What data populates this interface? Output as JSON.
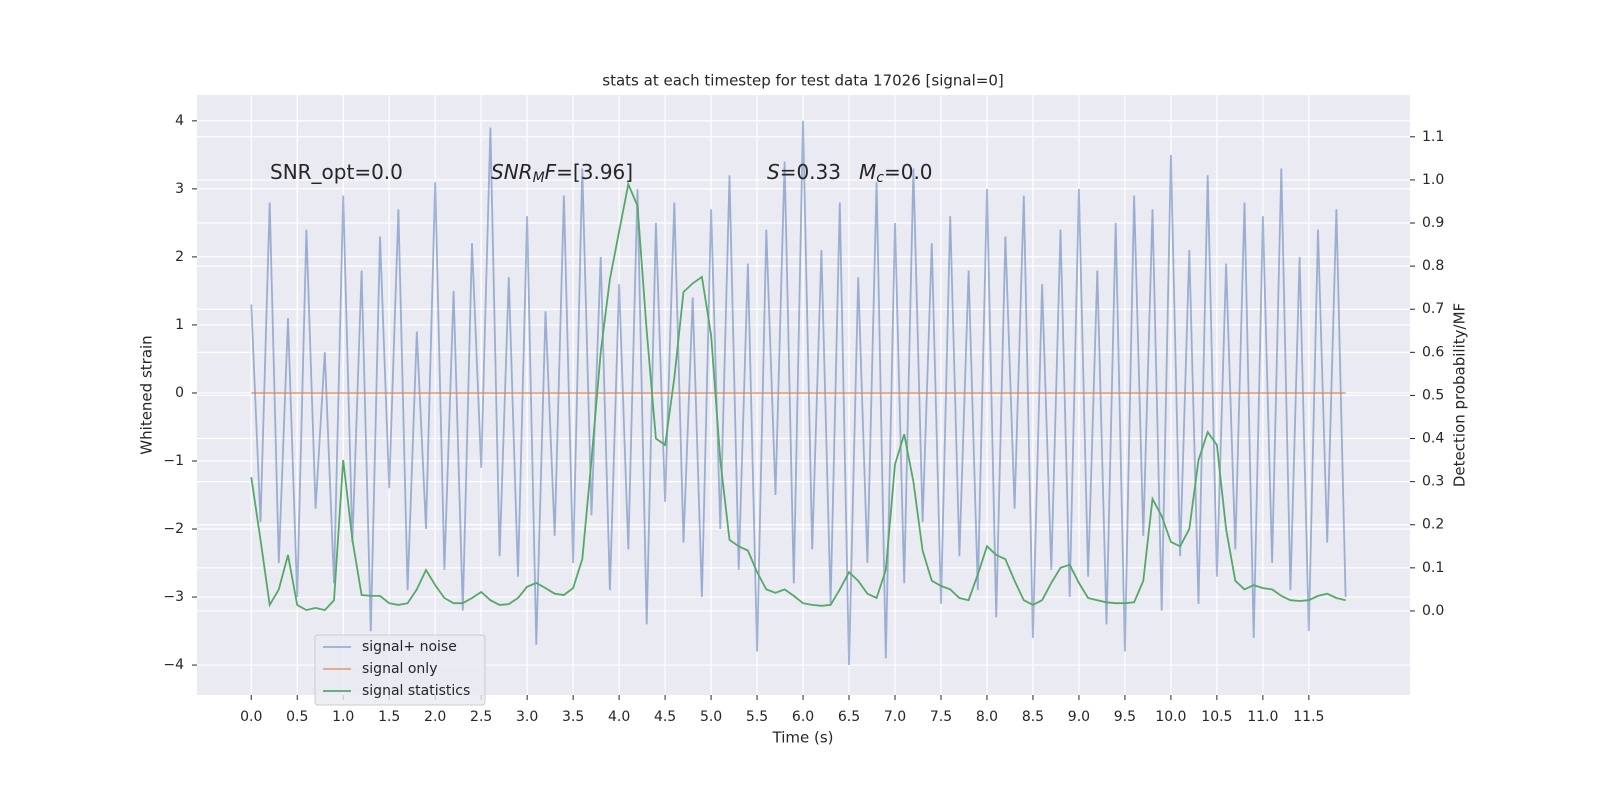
{
  "chart_data": {
    "type": "line",
    "title": "stats at each timestep for test data 17026 [signal=0]",
    "xlabel": "Time (s)",
    "ylabel": "Whitened strain",
    "y2label": "Detection probability/MF",
    "annotations": [
      [
        {
          "text": "SNR_opt=0.0"
        }
      ],
      [
        {
          "text": "SNR",
          "italic": true
        },
        {
          "text": "M",
          "italic": true,
          "sub": true
        },
        {
          "text": "F",
          "italic": true
        },
        {
          "text": "=[3.96]"
        }
      ],
      [
        {
          "text": "S",
          "italic": true
        },
        {
          "text": "=0.33"
        }
      ],
      [
        {
          "text": "M",
          "italic": true
        },
        {
          "text": "c",
          "italic": true,
          "sub": true
        },
        {
          "text": "=0.0"
        }
      ]
    ],
    "x": [
      0.0,
      0.1,
      0.2,
      0.3,
      0.4,
      0.5,
      0.6,
      0.7,
      0.8,
      0.9,
      1.0,
      1.1,
      1.2,
      1.3,
      1.4,
      1.5,
      1.6,
      1.7,
      1.8,
      1.9,
      2.0,
      2.1,
      2.2,
      2.3,
      2.4,
      2.5,
      2.6,
      2.7,
      2.8,
      2.9,
      3.0,
      3.1,
      3.2,
      3.3,
      3.4,
      3.5,
      3.6,
      3.7,
      3.8,
      3.9,
      4.0,
      4.1,
      4.2,
      4.3,
      4.4,
      4.5,
      4.6,
      4.7,
      4.8,
      4.9,
      5.0,
      5.1,
      5.2,
      5.3,
      5.4,
      5.5,
      5.6,
      5.7,
      5.8,
      5.9,
      6.0,
      6.1,
      6.2,
      6.3,
      6.4,
      6.5,
      6.6,
      6.7,
      6.8,
      6.9,
      7.0,
      7.1,
      7.2,
      7.3,
      7.4,
      7.5,
      7.6,
      7.7,
      7.8,
      7.9,
      8.0,
      8.1,
      8.2,
      8.3,
      8.4,
      8.5,
      8.6,
      8.7,
      8.8,
      8.9,
      9.0,
      9.1,
      9.2,
      9.3,
      9.4,
      9.5,
      9.6,
      9.7,
      9.8,
      9.9,
      10.0,
      10.1,
      10.2,
      10.3,
      10.4,
      10.5,
      10.6,
      10.7,
      10.8,
      10.9,
      11.0,
      11.1,
      11.2,
      11.3,
      11.4,
      11.5,
      11.6,
      11.7,
      11.8,
      11.9
    ],
    "series": [
      {
        "name": "signal+ noise",
        "color": "#4c72b0",
        "opacity": 0.5,
        "values": [
          1.3,
          -1.9,
          2.8,
          -2.5,
          1.1,
          -3.0,
          2.4,
          -1.7,
          0.6,
          -2.8,
          2.9,
          -2.2,
          1.8,
          -3.5,
          2.3,
          -1.4,
          2.7,
          -2.9,
          0.9,
          -2.0,
          3.1,
          -2.6,
          1.5,
          -3.2,
          2.2,
          -1.1,
          3.9,
          -2.4,
          1.7,
          -2.7,
          2.6,
          -3.7,
          1.2,
          -2.1,
          2.9,
          -2.5,
          3.3,
          -1.8,
          2.0,
          -2.9,
          1.6,
          -2.3,
          3.0,
          -3.4,
          2.5,
          -1.6,
          2.8,
          -2.2,
          1.4,
          -3.0,
          2.7,
          -2.0,
          3.2,
          -2.6,
          1.9,
          -3.8,
          2.4,
          -1.5,
          3.4,
          -2.8,
          4.0,
          -2.3,
          2.1,
          -3.1,
          2.8,
          -4.0,
          1.7,
          -2.5,
          3.1,
          -3.9,
          2.5,
          -2.8,
          3.3,
          -1.9,
          2.2,
          -3.1,
          2.6,
          -2.4,
          1.8,
          -2.9,
          3.0,
          -3.3,
          2.3,
          -1.7,
          2.9,
          -3.6,
          1.6,
          -2.6,
          2.4,
          -3.0,
          3.0,
          -2.7,
          1.8,
          -3.4,
          2.5,
          -3.8,
          2.9,
          -2.1,
          2.7,
          -3.2,
          3.5,
          -2.4,
          2.1,
          -3.1,
          3.2,
          -2.7,
          1.9,
          -2.3,
          2.8,
          -3.6,
          2.6,
          -2.5,
          3.3,
          -2.9,
          2.0,
          -3.5,
          2.4,
          -2.2,
          2.7,
          -3.0
        ]
      },
      {
        "name": "signal only",
        "color": "#dd8452",
        "opacity": 0.7,
        "values": [
          0,
          0,
          0,
          0,
          0,
          0,
          0,
          0,
          0,
          0,
          0,
          0,
          0,
          0,
          0,
          0,
          0,
          0,
          0,
          0,
          0,
          0,
          0,
          0,
          0,
          0,
          0,
          0,
          0,
          0,
          0,
          0,
          0,
          0,
          0,
          0,
          0,
          0,
          0,
          0,
          0,
          0,
          0,
          0,
          0,
          0,
          0,
          0,
          0,
          0,
          0,
          0,
          0,
          0,
          0,
          0,
          0,
          0,
          0,
          0,
          0,
          0,
          0,
          0,
          0,
          0,
          0,
          0,
          0,
          0,
          0,
          0,
          0,
          0,
          0,
          0,
          0,
          0,
          0,
          0,
          0,
          0,
          0,
          0,
          0,
          0,
          0,
          0,
          0,
          0,
          0,
          0,
          0,
          0,
          0,
          0,
          0,
          0,
          0,
          0,
          0,
          0,
          0,
          0,
          0,
          0,
          0,
          0,
          0,
          0,
          0,
          0,
          0,
          0,
          0,
          0,
          0,
          0,
          0,
          0
        ]
      },
      {
        "name": "signal statistics",
        "color": "#55a868",
        "opacity": 1,
        "axis": "y2",
        "values": [
          0.31,
          0.165,
          0.014,
          0.05,
          0.13,
          0.014,
          0.002,
          0.007,
          0.002,
          0.025,
          0.35,
          0.165,
          0.037,
          0.035,
          0.035,
          0.018,
          0.014,
          0.018,
          0.05,
          0.095,
          0.06,
          0.03,
          0.018,
          0.018,
          0.03,
          0.044,
          0.025,
          0.014,
          0.016,
          0.03,
          0.056,
          0.065,
          0.053,
          0.04,
          0.037,
          0.053,
          0.12,
          0.35,
          0.6,
          0.77,
          0.88,
          0.99,
          0.94,
          0.65,
          0.4,
          0.385,
          0.54,
          0.74,
          0.76,
          0.775,
          0.64,
          0.35,
          0.165,
          0.15,
          0.14,
          0.09,
          0.05,
          0.042,
          0.05,
          0.035,
          0.018,
          0.014,
          0.012,
          0.014,
          0.05,
          0.09,
          0.07,
          0.04,
          0.03,
          0.095,
          0.34,
          0.41,
          0.3,
          0.14,
          0.07,
          0.058,
          0.05,
          0.03,
          0.025,
          0.085,
          0.15,
          0.13,
          0.12,
          0.07,
          0.025,
          0.014,
          0.025,
          0.065,
          0.1,
          0.107,
          0.065,
          0.03,
          0.025,
          0.02,
          0.018,
          0.018,
          0.02,
          0.07,
          0.26,
          0.22,
          0.16,
          0.15,
          0.19,
          0.35,
          0.415,
          0.385,
          0.19,
          0.07,
          0.05,
          0.06,
          0.053,
          0.05,
          0.035,
          0.025,
          0.023,
          0.025,
          0.035,
          0.04,
          0.03,
          0.025
        ]
      }
    ],
    "xlim": [
      -0.59,
      12.6
    ],
    "xticks": [
      {
        "value": 0,
        "label": "0.0"
      },
      0.5,
      {
        "value": 1,
        "label": "1.0"
      },
      1.5,
      {
        "value": 2,
        "label": "2.0"
      },
      2.5,
      {
        "value": 3,
        "label": "3.0"
      },
      3.5,
      {
        "value": 4,
        "label": "4.0"
      },
      4.5,
      {
        "value": 5,
        "label": "5.0"
      },
      5.5,
      {
        "value": 6,
        "label": "6.0"
      },
      6.5,
      {
        "value": 7,
        "label": "7.0"
      },
      7.5,
      {
        "value": 8,
        "label": "8.0"
      },
      8.5,
      {
        "value": 9,
        "label": "9.0"
      },
      9.5,
      {
        "value": 10,
        "label": "10.0"
      },
      10.5,
      {
        "value": 11,
        "label": "11.0"
      },
      11.5
    ],
    "ylim": [
      -4.44,
      4.38
    ],
    "yticks": [
      {
        "value": -4,
        "label": "−4"
      },
      {
        "value": -3,
        "label": "−3"
      },
      {
        "value": -2,
        "label": "−2"
      },
      {
        "value": -1,
        "label": "−1"
      },
      0,
      1,
      2,
      3,
      4
    ],
    "y2lim": [
      -0.195,
      1.197
    ],
    "y2ticks": [
      {
        "value": 0,
        "label": "0.0"
      },
      0.1,
      0.2,
      0.3,
      0.4,
      0.5,
      0.6,
      0.7,
      0.8,
      0.9,
      {
        "value": 1,
        "label": "1.0"
      },
      1.1
    ],
    "grid": true,
    "legend": "lower left"
  }
}
